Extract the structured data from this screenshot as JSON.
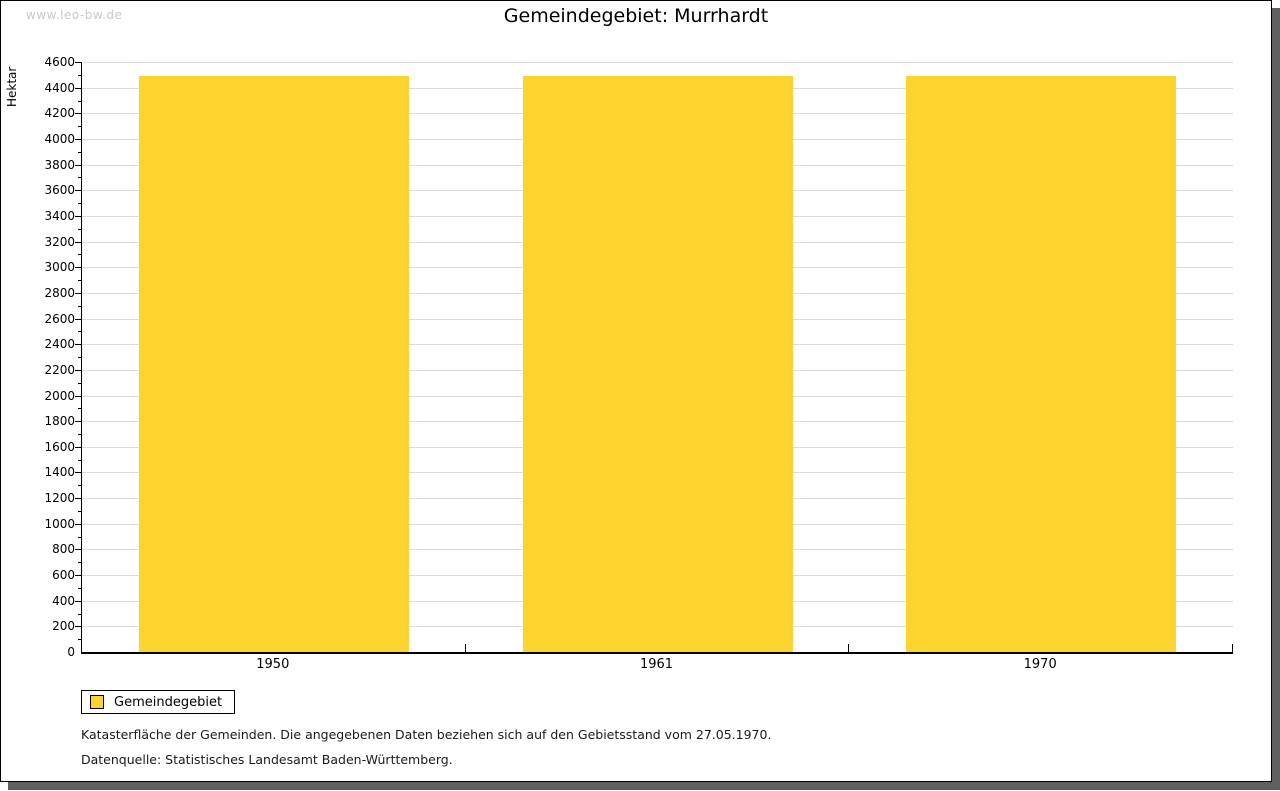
{
  "watermark": "www.leo-bw.de",
  "legend": {
    "label": "Gemeindegebiet"
  },
  "footnotes": [
    "Katasterfläche der Gemeinden. Die angegebenen Daten beziehen sich auf den Gebietsstand vom 27.05.1970.",
    "Datenquelle: Statistisches Landesamt Baden-Württemberg."
  ],
  "colors": {
    "bar": "#FCD42D",
    "grid": "#DCDCDC",
    "watermark": "#C8C8C8",
    "shadow": "#606060"
  },
  "chart_data": {
    "type": "bar",
    "title": "Gemeindegebiet: Murrhardt",
    "ylabel": "Hektar",
    "xlabel": "",
    "categories": [
      "1950",
      "1961",
      "1970"
    ],
    "series": [
      {
        "name": "Gemeindegebiet",
        "values": [
          4490,
          4490,
          4490
        ]
      }
    ],
    "ylim": [
      0,
      4600
    ],
    "tick_major": 200,
    "tick_minor": 100,
    "grid": true,
    "legend_position": "bottom-left"
  }
}
